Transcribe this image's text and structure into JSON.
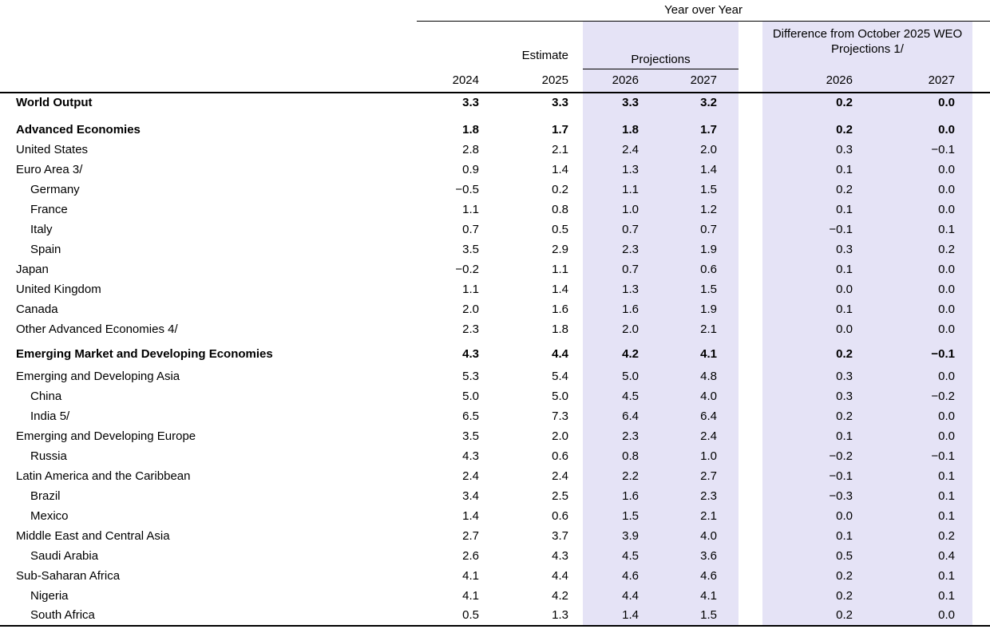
{
  "colors": {
    "band": "#e5e3f6"
  },
  "header": {
    "year_over_year": "Year over Year",
    "estimate": "Estimate",
    "projections": "Projections",
    "difference": "Difference from October 2025 WEO Projections 1/",
    "years": {
      "y2024": "2024",
      "y2025": "2025",
      "p2026": "2026",
      "p2027": "2027",
      "d2026": "2026",
      "d2027": "2027"
    }
  },
  "rows": [
    {
      "label": "World Output",
      "bold": true,
      "indent": 0,
      "gap": null,
      "values": [
        "3.3",
        "3.3",
        "3.3",
        "3.2",
        "0.2",
        "0.0"
      ]
    },
    {
      "label": "Advanced Economies",
      "bold": true,
      "indent": 0,
      "gap": "lg",
      "values": [
        "1.8",
        "1.7",
        "1.8",
        "1.7",
        "0.2",
        "0.0"
      ]
    },
    {
      "label": "United States",
      "bold": false,
      "indent": 0,
      "gap": null,
      "values": [
        "2.8",
        "2.1",
        "2.4",
        "2.0",
        "0.3",
        "−0.1"
      ]
    },
    {
      "label": "Euro Area 3/",
      "bold": false,
      "indent": 0,
      "gap": null,
      "values": [
        "0.9",
        "1.4",
        "1.3",
        "1.4",
        "0.1",
        "0.0"
      ]
    },
    {
      "label": "Germany",
      "bold": false,
      "indent": 1,
      "gap": null,
      "values": [
        "−0.5",
        "0.2",
        "1.1",
        "1.5",
        "0.2",
        "0.0"
      ]
    },
    {
      "label": "France",
      "bold": false,
      "indent": 1,
      "gap": null,
      "values": [
        "1.1",
        "0.8",
        "1.0",
        "1.2",
        "0.1",
        "0.0"
      ]
    },
    {
      "label": "Italy",
      "bold": false,
      "indent": 1,
      "gap": null,
      "values": [
        "0.7",
        "0.5",
        "0.7",
        "0.7",
        "−0.1",
        "0.1"
      ]
    },
    {
      "label": "Spain",
      "bold": false,
      "indent": 1,
      "gap": null,
      "values": [
        "3.5",
        "2.9",
        "2.3",
        "1.9",
        "0.3",
        "0.2"
      ]
    },
    {
      "label": "Japan",
      "bold": false,
      "indent": 0,
      "gap": null,
      "values": [
        "−0.2",
        "1.1",
        "0.7",
        "0.6",
        "0.1",
        "0.0"
      ]
    },
    {
      "label": "United Kingdom",
      "bold": false,
      "indent": 0,
      "gap": null,
      "values": [
        "1.1",
        "1.4",
        "1.3",
        "1.5",
        "0.0",
        "0.0"
      ]
    },
    {
      "label": "Canada",
      "bold": false,
      "indent": 0,
      "gap": null,
      "values": [
        "2.0",
        "1.6",
        "1.6",
        "1.9",
        "0.1",
        "0.0"
      ]
    },
    {
      "label": "Other Advanced Economies 4/",
      "bold": false,
      "indent": 0,
      "gap": null,
      "values": [
        "2.3",
        "1.8",
        "2.0",
        "2.1",
        "0.0",
        "0.0"
      ]
    },
    {
      "label": "Emerging Market and Developing Economies",
      "bold": true,
      "indent": 0,
      "gap": "md",
      "values": [
        "4.3",
        "4.4",
        "4.2",
        "4.1",
        "0.2",
        "−0.1"
      ]
    },
    {
      "label": "Emerging and Developing Asia",
      "bold": false,
      "indent": 0,
      "gap": "sm",
      "values": [
        "5.3",
        "5.4",
        "5.0",
        "4.8",
        "0.3",
        "0.0"
      ]
    },
    {
      "label": "China",
      "bold": false,
      "indent": 1,
      "gap": null,
      "values": [
        "5.0",
        "5.0",
        "4.5",
        "4.0",
        "0.3",
        "−0.2"
      ]
    },
    {
      "label": "India 5/",
      "bold": false,
      "indent": 1,
      "gap": null,
      "values": [
        "6.5",
        "7.3",
        "6.4",
        "6.4",
        "0.2",
        "0.0"
      ]
    },
    {
      "label": "Emerging and Developing Europe",
      "bold": false,
      "indent": 0,
      "gap": null,
      "values": [
        "3.5",
        "2.0",
        "2.3",
        "2.4",
        "0.1",
        "0.0"
      ]
    },
    {
      "label": "Russia",
      "bold": false,
      "indent": 1,
      "gap": null,
      "values": [
        "4.3",
        "0.6",
        "0.8",
        "1.0",
        "−0.2",
        "−0.1"
      ]
    },
    {
      "label": "Latin America and the Caribbean",
      "bold": false,
      "indent": 0,
      "gap": null,
      "values": [
        "2.4",
        "2.4",
        "2.2",
        "2.7",
        "−0.1",
        "0.1"
      ]
    },
    {
      "label": "Brazil",
      "bold": false,
      "indent": 1,
      "gap": null,
      "values": [
        "3.4",
        "2.5",
        "1.6",
        "2.3",
        "−0.3",
        "0.1"
      ]
    },
    {
      "label": "Mexico",
      "bold": false,
      "indent": 1,
      "gap": null,
      "values": [
        "1.4",
        "0.6",
        "1.5",
        "2.1",
        "0.0",
        "0.1"
      ]
    },
    {
      "label": "Middle East and Central Asia",
      "bold": false,
      "indent": 0,
      "gap": null,
      "values": [
        "2.7",
        "3.7",
        "3.9",
        "4.0",
        "0.1",
        "0.2"
      ]
    },
    {
      "label": "Saudi Arabia",
      "bold": false,
      "indent": 1,
      "gap": null,
      "values": [
        "2.6",
        "4.3",
        "4.5",
        "3.6",
        "0.5",
        "0.4"
      ]
    },
    {
      "label": "Sub-Saharan Africa",
      "bold": false,
      "indent": 0,
      "gap": null,
      "values": [
        "4.1",
        "4.4",
        "4.6",
        "4.6",
        "0.2",
        "0.1"
      ]
    },
    {
      "label": "Nigeria",
      "bold": false,
      "indent": 1,
      "gap": null,
      "values": [
        "4.1",
        "4.2",
        "4.4",
        "4.1",
        "0.2",
        "0.1"
      ]
    },
    {
      "label": "South Africa",
      "bold": false,
      "indent": 1,
      "gap": null,
      "values": [
        "0.5",
        "1.3",
        "1.4",
        "1.5",
        "0.2",
        "0.0"
      ]
    }
  ]
}
